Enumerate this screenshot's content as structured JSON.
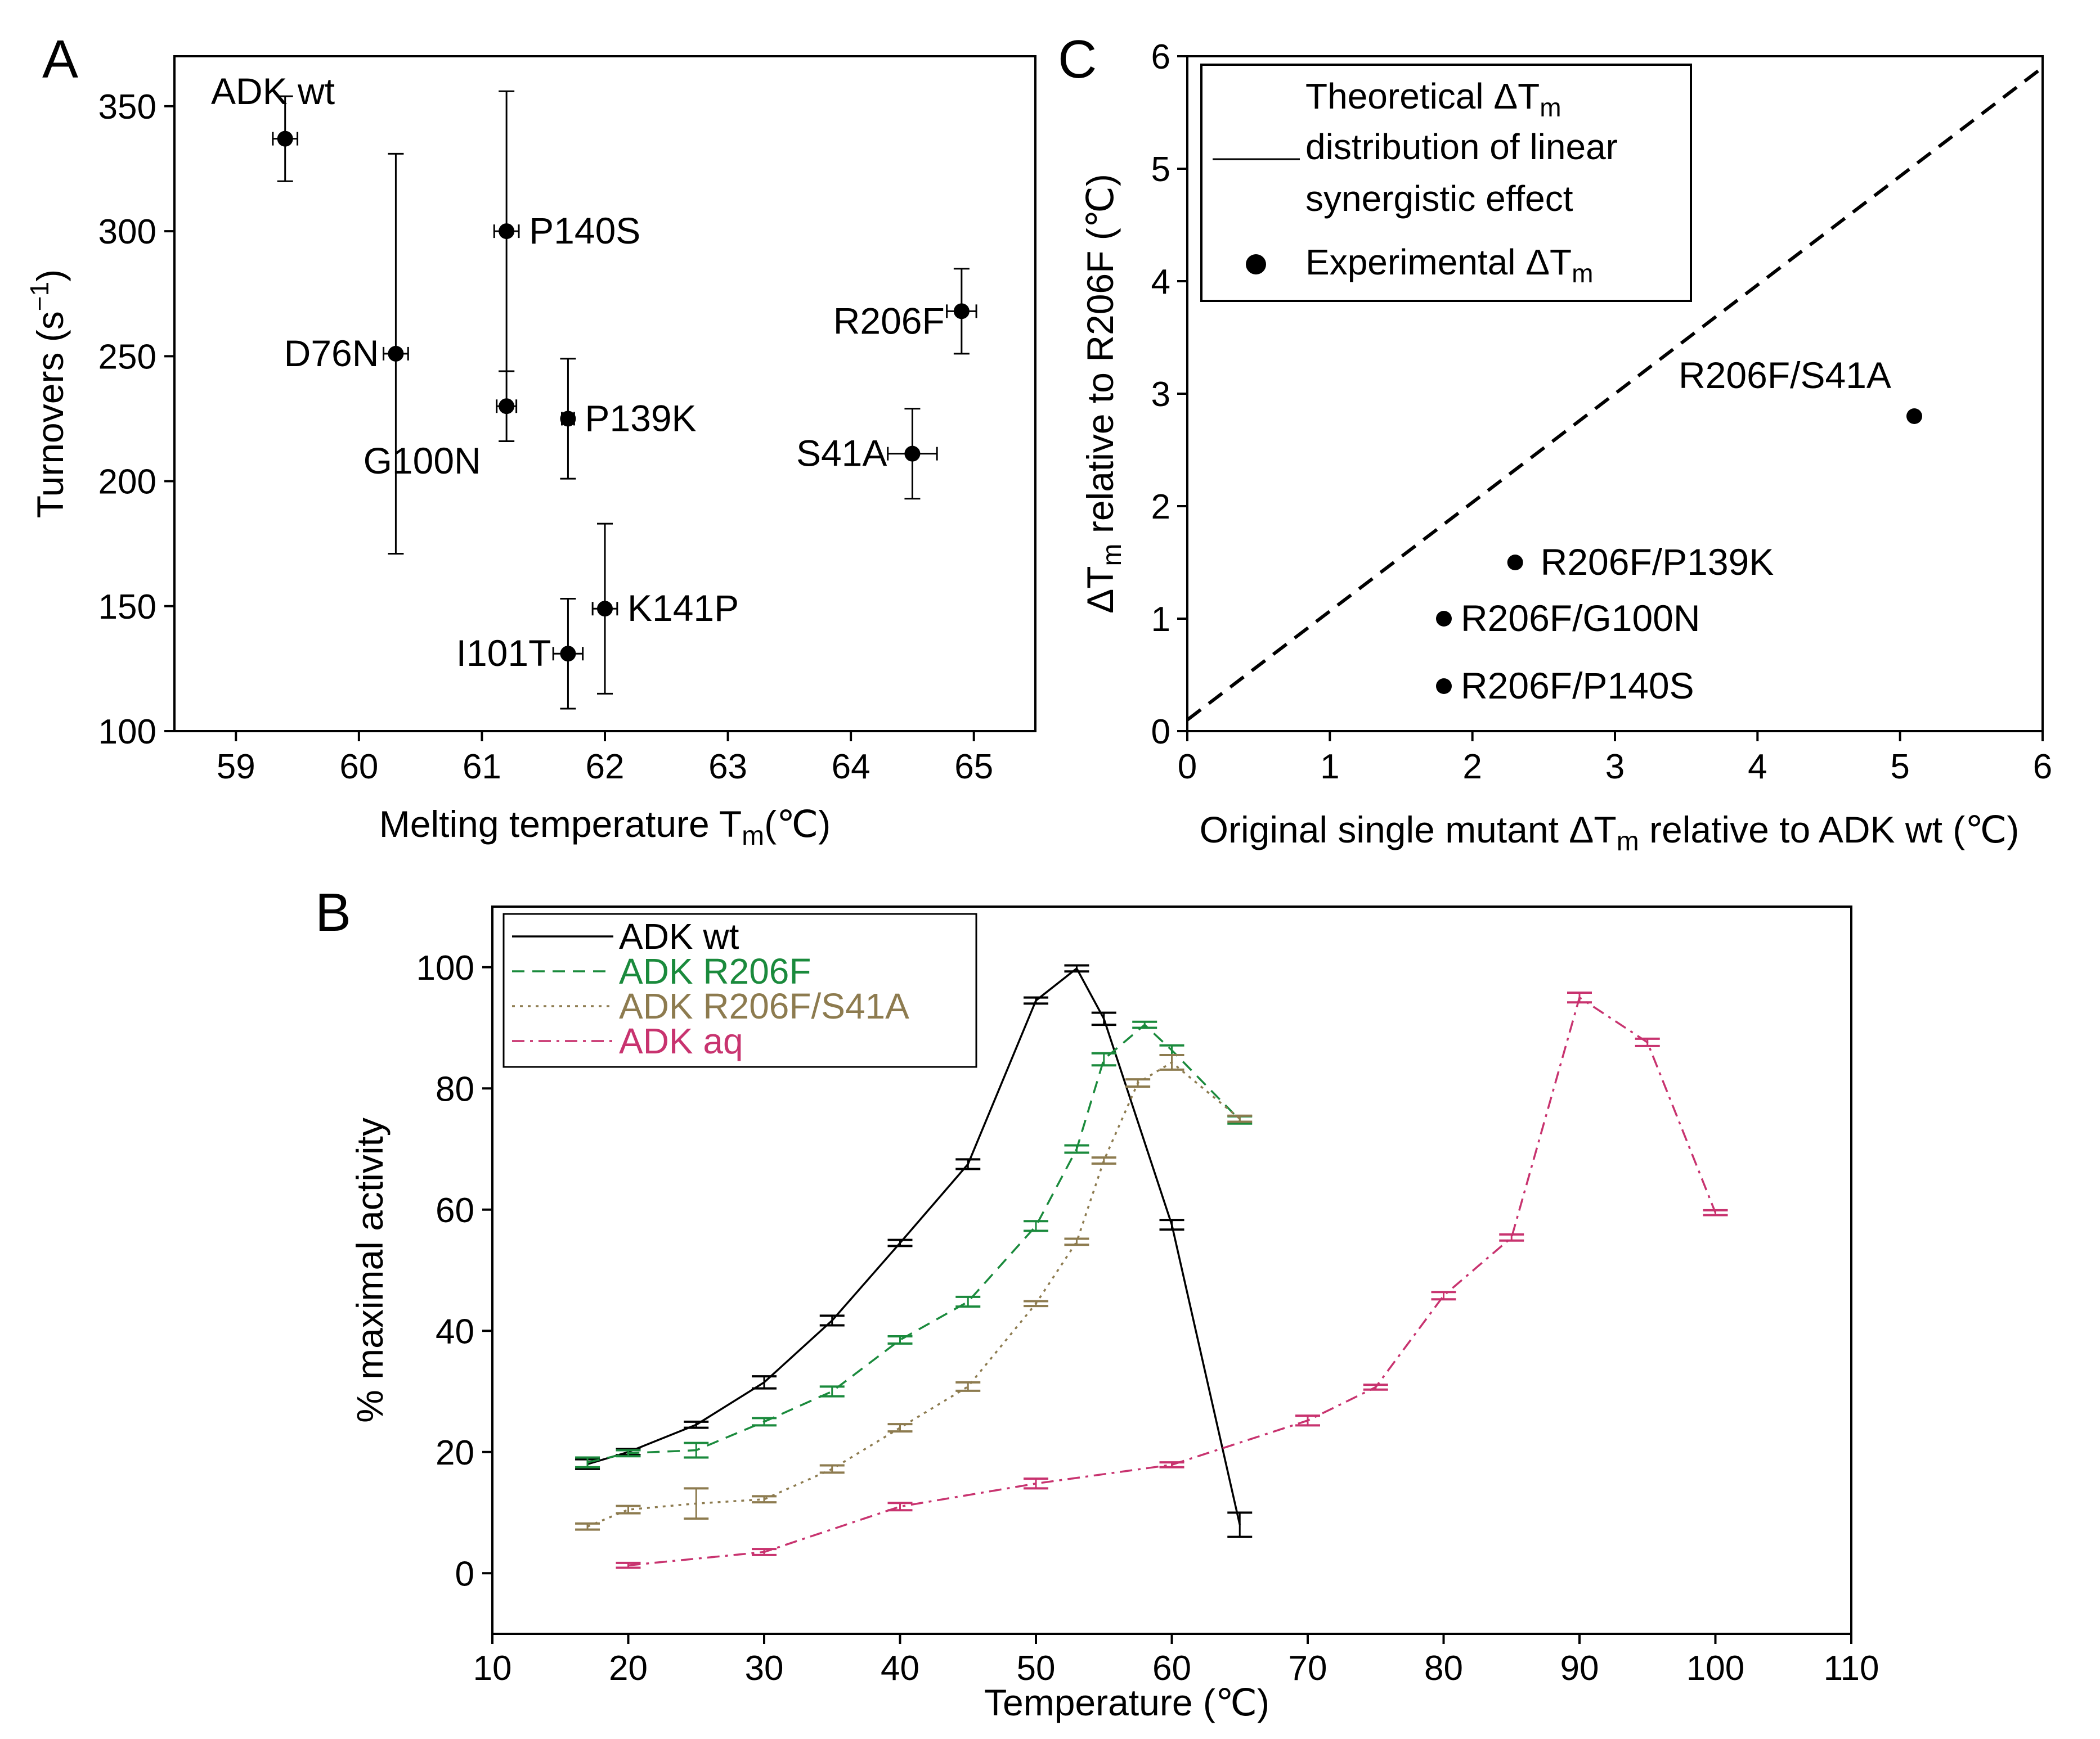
{
  "chart_data": [
    {
      "panel": "A",
      "type": "scatter",
      "annotation": "ADK wt",
      "xlabel": "Melting temperature T",
      "xlabel_sub": "m",
      "xlabel_unit": "(℃)",
      "ylabel": "Turnovers (s",
      "ylabel_sup": "−1",
      "ylabel_close": ")",
      "xlim": [
        58.5,
        65.5
      ],
      "ylim": [
        100,
        370
      ],
      "xticks": [
        59,
        60,
        61,
        62,
        63,
        64,
        65
      ],
      "yticks": [
        100,
        150,
        200,
        250,
        300,
        350
      ],
      "points": [
        {
          "label": "",
          "x": 59.4,
          "y": 337,
          "xerr": 0.1,
          "yerr": [
            17,
            17
          ]
        },
        {
          "label": "D76N",
          "x": 60.3,
          "y": 251,
          "xerr": 0.1,
          "yerr": [
            80,
            80
          ]
        },
        {
          "label": "P140S",
          "x": 61.2,
          "y": 300,
          "xerr": 0.1,
          "yerr": [
            56,
            56
          ]
        },
        {
          "label": "G100N",
          "x": 61.2,
          "y": 230,
          "xerr": 0.08,
          "yerr": [
            14,
            14
          ]
        },
        {
          "label": "P139K",
          "x": 61.7,
          "y": 225,
          "xerr": 0.05,
          "yerr": [
            24,
            24
          ]
        },
        {
          "label": "R206F",
          "x": 64.9,
          "y": 268,
          "xerr": 0.12,
          "yerr": [
            17,
            17
          ]
        },
        {
          "label": "S41A",
          "x": 64.5,
          "y": 211,
          "xerr": 0.2,
          "yerr": [
            18,
            18
          ]
        },
        {
          "label": "K141P",
          "x": 62.0,
          "y": 149,
          "xerr": 0.1,
          "yerr": [
            34,
            34
          ]
        },
        {
          "label": "I101T",
          "x": 61.7,
          "y": 131,
          "xerr": 0.12,
          "yerr": [
            22,
            22
          ]
        }
      ]
    },
    {
      "panel": "C",
      "type": "scatter",
      "xlabel": "Original single mutant ΔT",
      "xlabel_sub": "m",
      "xlabel_rest": " relative to ADK wt (℃)",
      "ylabel": "ΔT",
      "ylabel_sub": "m",
      "ylabel_rest": " relative to R206F (℃)",
      "xlim": [
        0,
        6
      ],
      "ylim": [
        0,
        6
      ],
      "xticks": [
        0,
        1,
        2,
        3,
        4,
        5,
        6
      ],
      "yticks": [
        0,
        1,
        2,
        3,
        4,
        5,
        6
      ],
      "theory_line": {
        "x": [
          0,
          6
        ],
        "y": [
          0.1,
          5.9
        ]
      },
      "legend": {
        "line_label": [
          "Theoretical ΔT",
          "m",
          "distribution of linear",
          "synergistic effect"
        ],
        "point_label": [
          "Experimental ΔT",
          "m"
        ]
      },
      "points": [
        {
          "label": "R206F/S41A",
          "x": 5.1,
          "y": 2.8
        },
        {
          "label": "R206F/P139K",
          "x": 2.3,
          "y": 1.5
        },
        {
          "label": "R206F/G100N",
          "x": 1.8,
          "y": 1.0
        },
        {
          "label": "R206F/P140S",
          "x": 1.8,
          "y": 0.4
        }
      ]
    },
    {
      "panel": "B",
      "type": "line",
      "xlabel": "Temperature (℃)",
      "ylabel": "% maximal activity",
      "xlim": [
        10,
        110
      ],
      "ylim": [
        -10,
        110
      ],
      "xticks": [
        10,
        20,
        30,
        40,
        50,
        60,
        70,
        80,
        90,
        100,
        110
      ],
      "yticks": [
        0,
        20,
        40,
        60,
        80,
        100
      ],
      "series": [
        {
          "name": "ADK wt",
          "color": "#000000",
          "dash": "solid",
          "x": [
            17,
            20,
            25,
            30,
            35,
            40,
            45,
            50,
            53,
            55,
            60,
            65
          ],
          "y": [
            18,
            20,
            24.5,
            31.5,
            41.7,
            54.5,
            67.5,
            94.5,
            99.8,
            91.5,
            57.5,
            8
          ],
          "err": [
            0.8,
            0.5,
            0.5,
            1,
            0.8,
            0.5,
            0.8,
            0.5,
            0.5,
            1,
            0.8,
            2
          ]
        },
        {
          "name": "ADK R206F",
          "color": "#1a8a3c",
          "dash": "dashed",
          "x": [
            17,
            20,
            25,
            30,
            35,
            40,
            45,
            50,
            53,
            55,
            58,
            60,
            65
          ],
          "y": [
            18.3,
            19.8,
            20.3,
            25,
            30,
            38.5,
            44.8,
            57.3,
            70,
            84.8,
            90.5,
            86.3,
            74.8
          ],
          "err": [
            0.8,
            0.5,
            1.2,
            0.6,
            0.8,
            0.6,
            0.8,
            0.8,
            0.6,
            1,
            0.5,
            0.8,
            0.6
          ]
        },
        {
          "name": "ADK R206F/S41A",
          "color": "#8d7b4f",
          "dash": "dotted",
          "x": [
            17,
            20,
            25,
            30,
            35,
            40,
            45,
            50,
            53,
            55,
            57.5,
            60,
            65
          ],
          "y": [
            7.7,
            10.5,
            11.5,
            12.2,
            17.2,
            24,
            30.8,
            44.5,
            54.7,
            68.1,
            80.9,
            84.3,
            75
          ],
          "err": [
            0.5,
            0.6,
            2.5,
            0.5,
            0.6,
            0.6,
            0.7,
            0.4,
            0.5,
            0.5,
            0.6,
            1.2,
            0.5
          ]
        },
        {
          "name": "ADK aq",
          "color": "#c8336f",
          "dash": "dashdot",
          "x": [
            20,
            30,
            40,
            50,
            60,
            70,
            75,
            80,
            85,
            90,
            95,
            100
          ],
          "y": [
            1.3,
            3.5,
            11,
            14.8,
            17.9,
            25.2,
            30.7,
            45.8,
            55.4,
            95,
            87.6,
            59.5
          ],
          "err": [
            0.4,
            0.5,
            0.6,
            0.8,
            0.4,
            0.8,
            0.4,
            0.6,
            0.5,
            0.8,
            0.6,
            0.4
          ]
        }
      ]
    }
  ]
}
